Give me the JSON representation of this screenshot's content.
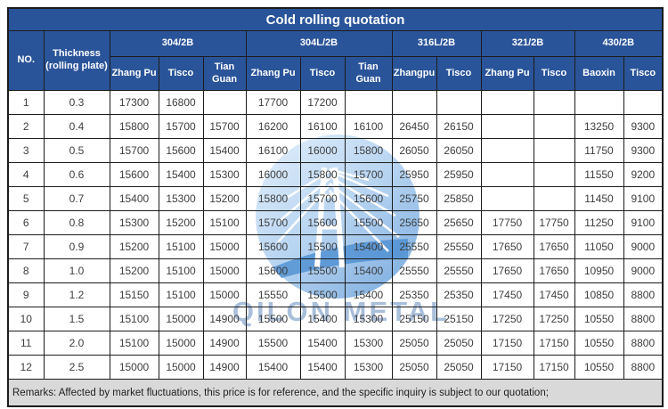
{
  "title": "Cold rolling quotation",
  "colors": {
    "header_blue": "#2a5499",
    "remarks_bg": "#d9d9d9",
    "grid_black": "#1c1c1c",
    "watermark_blue": "#8caacd"
  },
  "watermark": {
    "text": "QILON METAL",
    "logo": "qilon-bridge-logo"
  },
  "table": {
    "col_no": "NO.",
    "col_thickness": "Thickness (rolling plate)",
    "groups": [
      {
        "label": "304/2B",
        "suppliers": [
          "Zhang Pu",
          "Tisco",
          "Tian Guan"
        ]
      },
      {
        "label": "304L/2B",
        "suppliers": [
          "Zhang Pu",
          "Tisco",
          "Tian Guan"
        ]
      },
      {
        "label": "316L/2B",
        "suppliers": [
          "Zhangpu",
          "Tisco"
        ]
      },
      {
        "label": "321/2B",
        "suppliers": [
          "Zhang Pu",
          "Tisco"
        ]
      },
      {
        "label": "430/2B",
        "suppliers": [
          "Baoxin",
          "Tisco"
        ]
      }
    ],
    "rows": [
      {
        "no": "1",
        "thickness": "0.3",
        "values": [
          "17300",
          "16800",
          "",
          "17700",
          "17200",
          "",
          "",
          "",
          "",
          "",
          "",
          ""
        ]
      },
      {
        "no": "2",
        "thickness": "0.4",
        "values": [
          "15800",
          "15700",
          "15700",
          "16200",
          "16100",
          "16100",
          "26450",
          "26150",
          "",
          "",
          "13250",
          "9300"
        ]
      },
      {
        "no": "3",
        "thickness": "0.5",
        "values": [
          "15700",
          "15600",
          "15400",
          "16100",
          "16000",
          "15800",
          "26050",
          "26050",
          "",
          "",
          "11750",
          "9300"
        ]
      },
      {
        "no": "4",
        "thickness": "0.6",
        "values": [
          "15600",
          "15400",
          "15300",
          "16000",
          "15800",
          "15700",
          "25950",
          "25950",
          "",
          "",
          "11550",
          "9200"
        ]
      },
      {
        "no": "5",
        "thickness": "0.7",
        "values": [
          "15400",
          "15300",
          "15200",
          "15800",
          "15700",
          "15600",
          "25750",
          "25850",
          "",
          "",
          "11450",
          "9100"
        ]
      },
      {
        "no": "6",
        "thickness": "0.8",
        "values": [
          "15300",
          "15200",
          "15100",
          "15700",
          "15600",
          "15500",
          "25650",
          "25650",
          "17750",
          "17750",
          "11250",
          "9100"
        ]
      },
      {
        "no": "7",
        "thickness": "0.9",
        "values": [
          "15200",
          "15100",
          "15000",
          "15600",
          "15500",
          "15400",
          "25550",
          "25550",
          "17650",
          "17650",
          "11050",
          "9000"
        ]
      },
      {
        "no": "8",
        "thickness": "1.0",
        "values": [
          "15200",
          "15100",
          "15000",
          "15600",
          "15500",
          "15400",
          "25550",
          "25550",
          "17650",
          "17650",
          "10950",
          "9000"
        ]
      },
      {
        "no": "9",
        "thickness": "1.2",
        "values": [
          "15150",
          "15100",
          "15000",
          "15550",
          "15500",
          "15400",
          "25350",
          "25350",
          "17450",
          "17450",
          "10850",
          "8800"
        ]
      },
      {
        "no": "10",
        "thickness": "1.5",
        "values": [
          "15100",
          "15000",
          "14900",
          "15500",
          "15400",
          "15300",
          "25150",
          "25150",
          "17250",
          "17250",
          "10550",
          "8800"
        ]
      },
      {
        "no": "11",
        "thickness": "2.0",
        "values": [
          "15100",
          "15000",
          "14900",
          "15500",
          "15400",
          "15300",
          "25050",
          "25050",
          "17150",
          "17150",
          "10550",
          "8800"
        ]
      },
      {
        "no": "12",
        "thickness": "2.5",
        "values": [
          "15000",
          "15000",
          "14900",
          "15400",
          "15400",
          "15300",
          "25050",
          "25050",
          "17150",
          "17150",
          "10550",
          "8800"
        ]
      }
    ]
  },
  "remarks": "Remarks: Affected by market fluctuations, this price is for reference, and the specific inquiry is subject to our quotation;"
}
